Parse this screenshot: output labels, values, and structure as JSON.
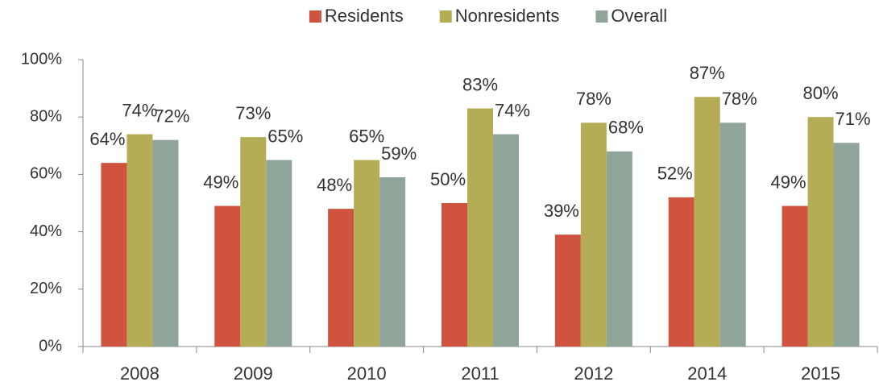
{
  "chart_data": {
    "type": "bar",
    "categories": [
      "2008",
      "2009",
      "2010",
      "2011",
      "2012",
      "2014",
      "2015"
    ],
    "series": [
      {
        "name": "Residents",
        "color": "#d0533f",
        "values": [
          64,
          49,
          48,
          50,
          39,
          52,
          49
        ],
        "value_labels": [
          "64%",
          "49%",
          "48%",
          "50%",
          "39%",
          "52%",
          "49%"
        ]
      },
      {
        "name": "Nonresidents",
        "color": "#b5ad55",
        "values": [
          74,
          73,
          65,
          83,
          78,
          87,
          80
        ],
        "value_labels": [
          "74%",
          "73%",
          "65%",
          "83%",
          "78%",
          "87%",
          "80%"
        ]
      },
      {
        "name": "Overall",
        "color": "#8fa59a",
        "values": [
          72,
          65,
          59,
          74,
          68,
          78,
          71
        ],
        "value_labels": [
          "72%",
          "65%",
          "59%",
          "74%",
          "68%",
          "78%",
          "71%"
        ]
      }
    ],
    "ylim": [
      0,
      100
    ],
    "yticks": [
      {
        "value": 0,
        "label": "0%"
      },
      {
        "value": 20,
        "label": "20%"
      },
      {
        "value": 40,
        "label": "40%"
      },
      {
        "value": 60,
        "label": "60%"
      },
      {
        "value": 80,
        "label": "80%"
      },
      {
        "value": 100,
        "label": "100%"
      }
    ],
    "legend": "top"
  }
}
